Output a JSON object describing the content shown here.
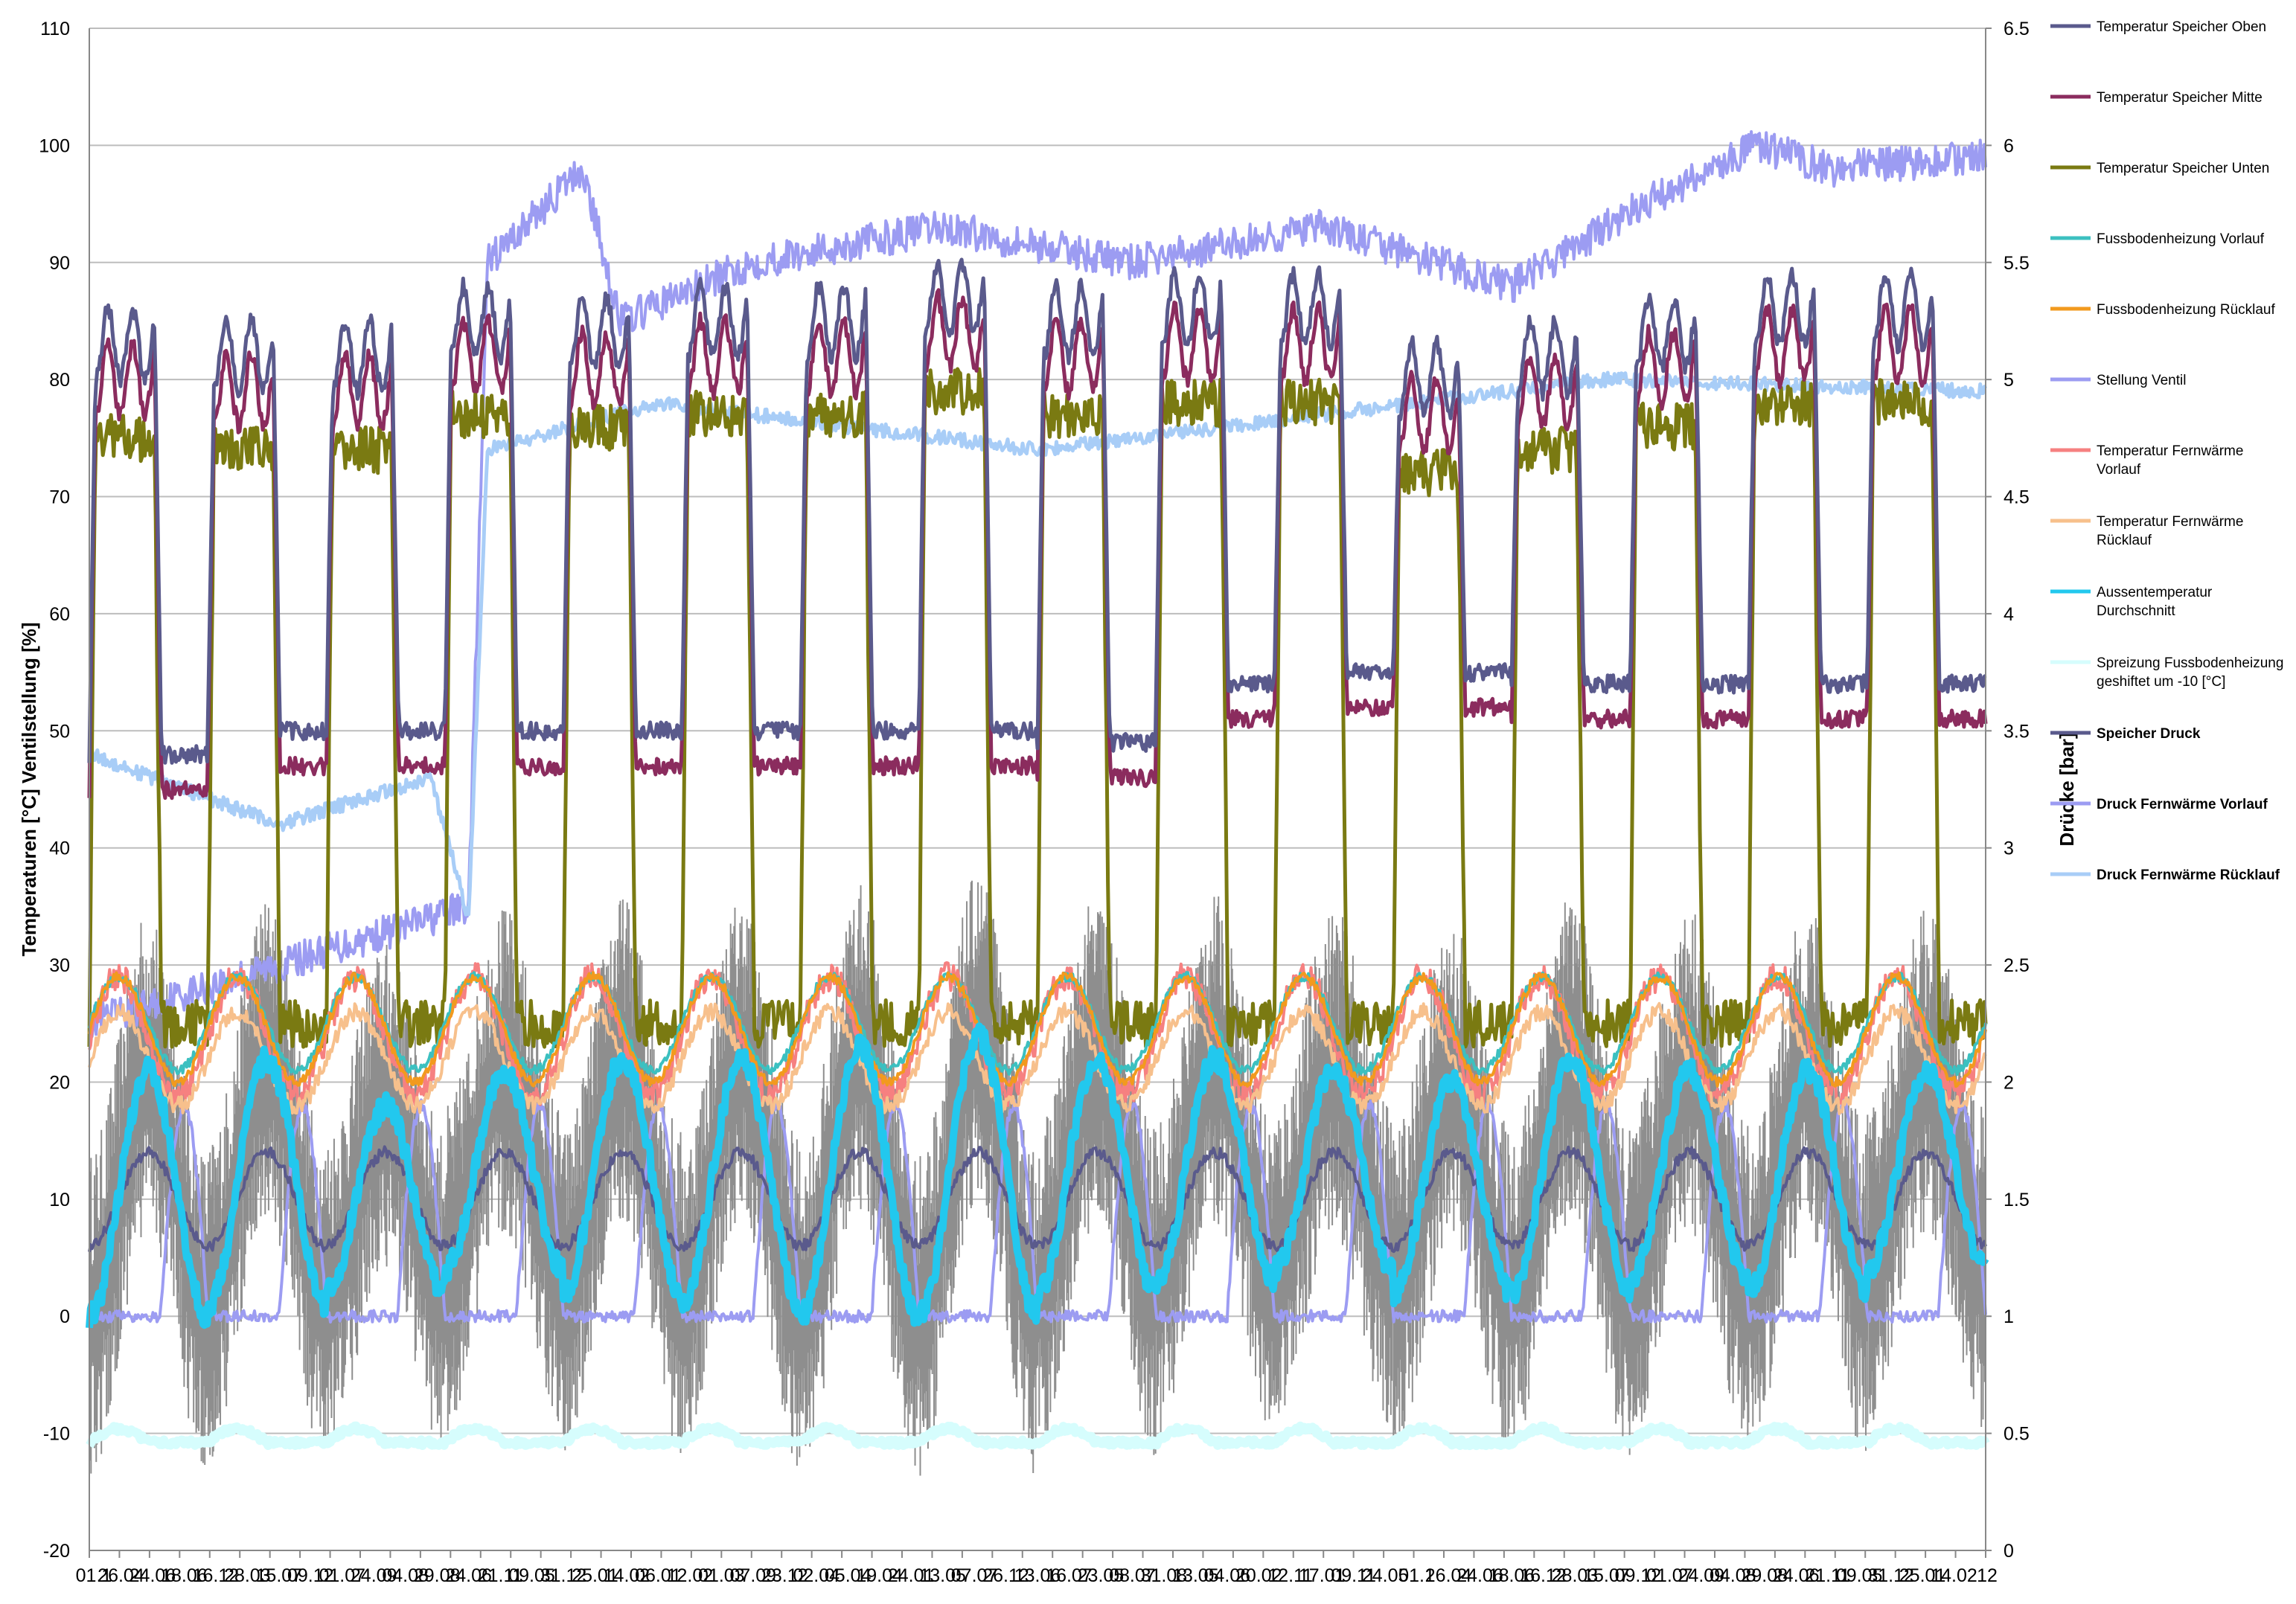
{
  "chart_data": {
    "type": "line",
    "y_left": {
      "label": "Temperaturen [°C] Ventilstellung [%]",
      "min": -20,
      "max": 110,
      "step": 10,
      "ticks": [
        "110",
        "100",
        "90",
        "80",
        "70",
        "60",
        "50",
        "40",
        "30",
        "20",
        "10",
        "0",
        "-10",
        "-20"
      ]
    },
    "y_right": {
      "label": "Drücke [bar]",
      "min": 0,
      "max": 6.5,
      "step": 0.5,
      "ticks": [
        "6.5",
        "6",
        "5.5",
        "5",
        "4.5",
        "4",
        "3.5",
        "3",
        "2.5",
        "2",
        "1.5",
        "1",
        "0.5",
        "0"
      ]
    },
    "x": {
      "first_label": "01.1",
      "last_label": "12",
      "tick_count": 64,
      "grid": false
    },
    "grid": {
      "horizontal": true,
      "vertical": false
    },
    "legend": {
      "position": "right",
      "entries": [
        {
          "label": "Temperatur Speicher Oben",
          "color": "#5a5a8c",
          "width": 5
        },
        {
          "label": "Temperatur Speicher Mitte",
          "color": "#8b2c5e",
          "width": 5
        },
        {
          "label": "Temperatur Speicher Unten",
          "color": "#7a7a12",
          "width": 5
        },
        {
          "label": "Fussbodenheizung Vorlauf",
          "color": "#3cc0c0",
          "width": 5
        },
        {
          "label": "Fussbodenheizung Rücklauf",
          "color": "#f29a1e",
          "width": 5
        },
        {
          "label": "Stellung Ventil",
          "color": "#9c9cf2",
          "width": 5
        },
        {
          "label": "Temperatur Fernwärme\nVorlauf",
          "color": "#f68080",
          "width": 5
        },
        {
          "label": "Temperatur Fernwärme\nRücklauf",
          "color": "#f7c08c",
          "width": 5
        },
        {
          "label": "Aussentemperatur\nDurchschnitt",
          "color": "#22c8ee",
          "width": 5
        },
        {
          "label": "Spreizung Fussbodenheizung\ngeshiftet um -10 [°C]",
          "color": "#d6fdfd",
          "width": 5
        },
        {
          "label": "Speicher Druck",
          "color": "#5a5a8c",
          "width": 5,
          "bold": true
        },
        {
          "label": "Druck Fernwärme Vorlauf",
          "color": "#9c9cf2",
          "width": 5,
          "bold": true
        },
        {
          "label": "Druck Fernwärme Rücklauf",
          "color": "#a8cdf7",
          "width": 5,
          "bold": true
        }
      ]
    },
    "cycles": {
      "count": 16,
      "top_oben": [
        83,
        82,
        82,
        85,
        84,
        85,
        85,
        87,
        85,
        86,
        86,
        80,
        82,
        84,
        86,
        86
      ],
      "trough_oben": [
        48,
        50,
        50,
        50,
        50,
        50,
        50,
        50,
        49,
        54,
        55,
        55,
        54,
        54,
        54,
        54
      ],
      "outside_peak": [
        21,
        22,
        18,
        21,
        22,
        22,
        23,
        24,
        22,
        22,
        21,
        20,
        22,
        21,
        21,
        21
      ],
      "outside_trough": [
        0,
        1,
        2,
        4,
        2,
        1,
        0,
        0,
        2,
        3,
        4,
        2,
        2,
        3,
        2,
        4
      ]
    },
    "series_summary": {
      "Stellung Ventil_trend": [
        [
          0,
          25
        ],
        [
          0.2,
          35
        ],
        [
          0.21,
          90
        ],
        [
          0.26,
          98
        ],
        [
          0.28,
          85
        ],
        [
          0.35,
          90
        ],
        [
          0.45,
          93
        ],
        [
          0.55,
          90
        ],
        [
          0.65,
          93
        ],
        [
          0.75,
          88
        ],
        [
          0.82,
          95
        ],
        [
          0.88,
          100
        ],
        [
          0.92,
          98
        ],
        [
          1.0,
          99
        ]
      ],
      "Druck Fernwärme Rücklauf_bar": [
        [
          0,
          3.4
        ],
        [
          0.1,
          3.1
        ],
        [
          0.18,
          3.3
        ],
        [
          0.2,
          2.7
        ],
        [
          0.21,
          4.7
        ],
        [
          0.3,
          4.9
        ],
        [
          0.5,
          4.7
        ],
        [
          0.7,
          4.9
        ],
        [
          0.8,
          5.0
        ],
        [
          1.0,
          4.95
        ]
      ],
      "Spreizung_level": -10
    }
  }
}
